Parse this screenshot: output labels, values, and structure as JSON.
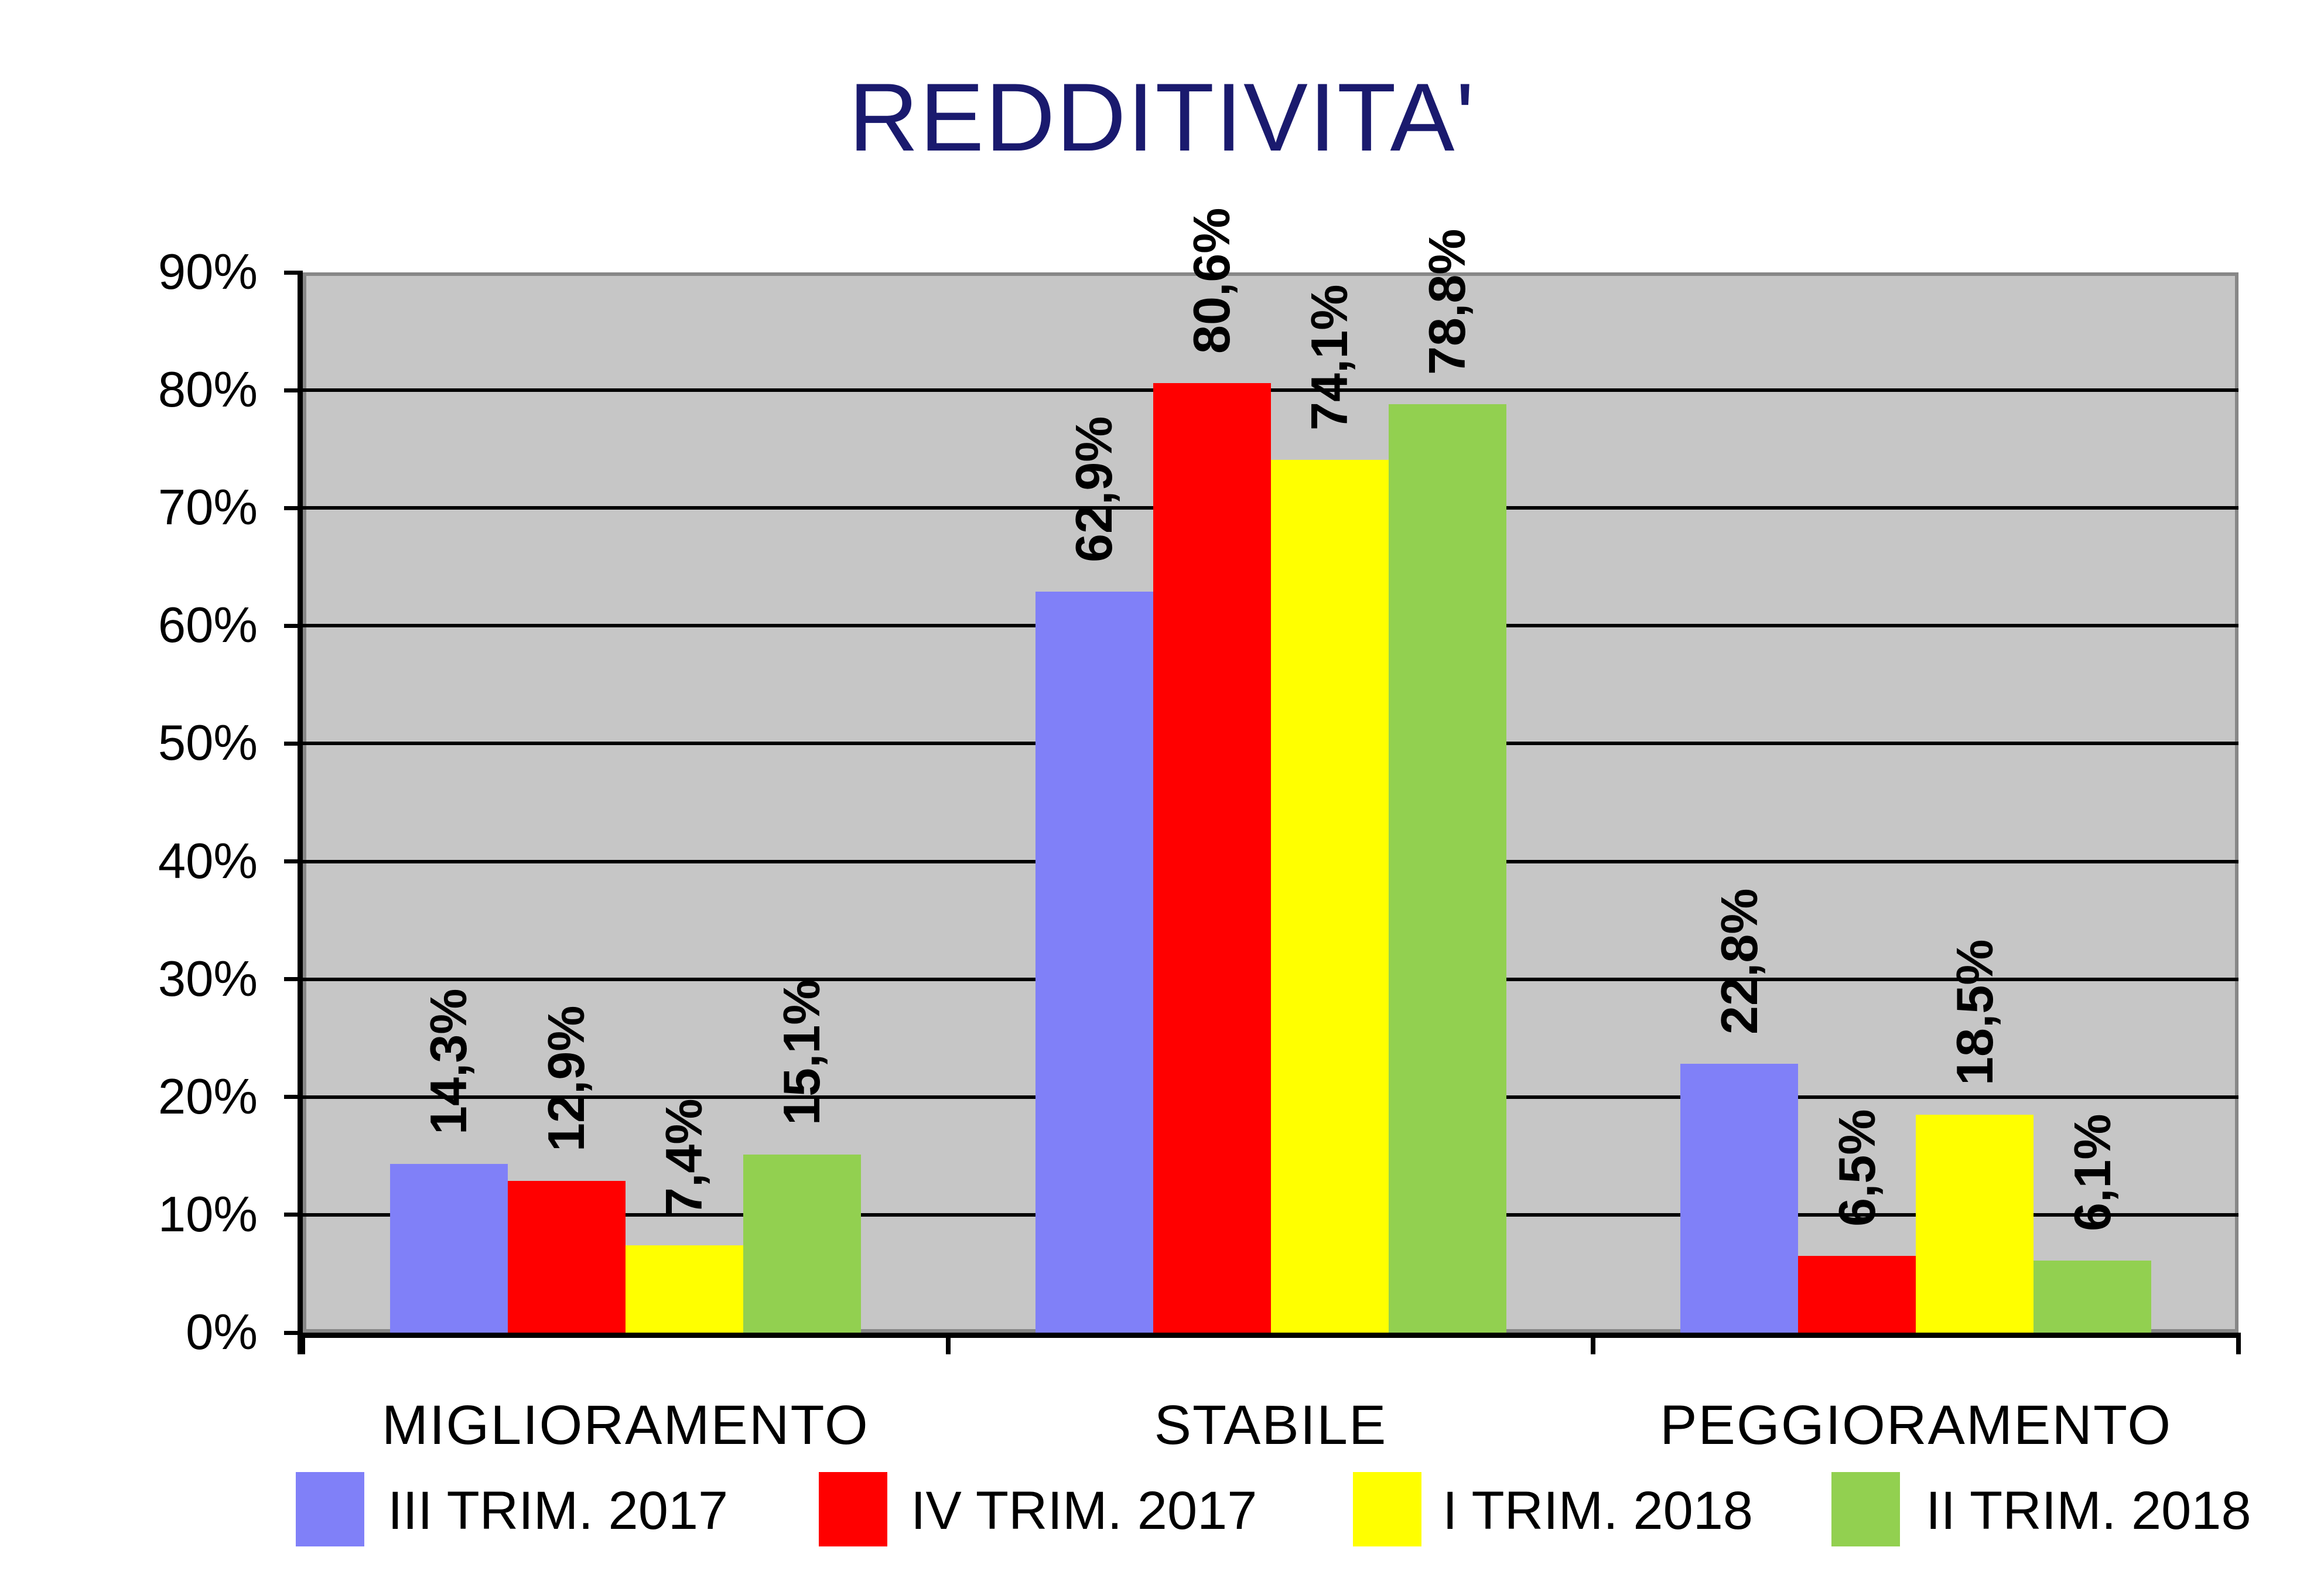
{
  "title": "REDDITIVITA'",
  "chart_data": {
    "type": "bar",
    "title": "REDDITIVITA'",
    "categories": [
      "MIGLIORAMENTO",
      "STABILE",
      "PEGGIORAMENTO"
    ],
    "series": [
      {
        "name": "III TRIM. 2017",
        "color": "#8080F8",
        "values": [
          14.3,
          62.9,
          22.8
        ],
        "labels": [
          "14,3%",
          "62,9%",
          "22,8%"
        ]
      },
      {
        "name": "IV TRIM. 2017",
        "color": "#FF0000",
        "values": [
          12.9,
          80.6,
          6.5
        ],
        "labels": [
          "12,9%",
          "80,6%",
          "6,5%"
        ]
      },
      {
        "name": "I TRIM. 2018",
        "color": "#FFFF00",
        "values": [
          7.4,
          74.1,
          18.5
        ],
        "labels": [
          "7,4%",
          "74,1%",
          "18,5%"
        ]
      },
      {
        "name": "II TRIM. 2018",
        "color": "#92D050",
        "values": [
          15.1,
          78.8,
          6.1
        ],
        "labels": [
          "15,1%",
          "78,8%",
          "6,1%"
        ]
      }
    ],
    "y_axis": {
      "min": 0,
      "max": 90,
      "step": 10,
      "tick_labels": [
        "0%",
        "10%",
        "20%",
        "30%",
        "40%",
        "50%",
        "60%",
        "70%",
        "80%",
        "90%"
      ]
    },
    "grid": true,
    "legend_position": "bottom",
    "plot_background": "#C6C6C6",
    "plot_border_color": "#878787",
    "gridline_color": "#000000",
    "title_color": "#1A1A6E"
  }
}
